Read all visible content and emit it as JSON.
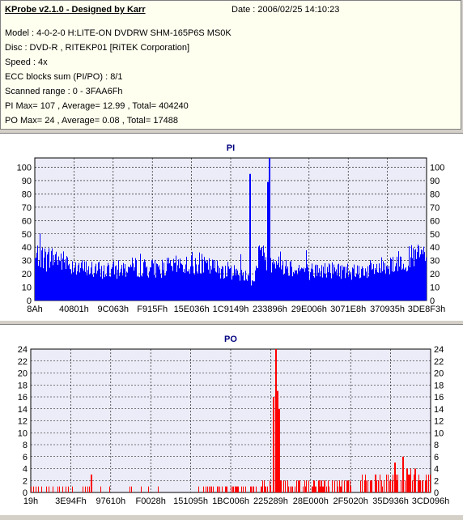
{
  "header": {
    "title": "KProbe v2.1.0 - Designed by Karr",
    "date": "Date : 2006/02/25 14:10:23",
    "model": "Model : 4-0-2-0 H:LITE-ON DVDRW SHM-165P6S MS0K",
    "disc": "Disc : DVD-R , RITEKP01 [RiTEK Corporation]",
    "speed": "Speed : 4x",
    "ecc": "ECC blocks sum (PI/PO) : 8/1",
    "scanned": "Scanned range : 0 - 3FAA6Fh",
    "pi_stats": "PI Max= 107 , Average= 12.99 , Total= 404240",
    "po_stats": "PO Max= 24 , Average= 0.08 , Total= 17488"
  },
  "colors": {
    "background": "#d4d0c8",
    "info_bg": "#fffff0",
    "plot_bg": "#ececf8",
    "bar": "#0000ff",
    "po_bar": "#ff0000",
    "title": "#000080"
  },
  "chart_data": [
    {
      "type": "bar",
      "title": "PI",
      "ylim": [
        0,
        107
      ],
      "yticks": [
        0,
        10,
        20,
        30,
        40,
        50,
        60,
        70,
        80,
        90,
        100
      ],
      "xlabels": [
        "8Ah",
        "40801h",
        "9C063h",
        "F915Fh",
        "15E036h",
        "1C9149h",
        "233896h",
        "29E006h",
        "3071E8h",
        "370935h",
        "3DE8F3h"
      ],
      "baseline_profile": [
        [
          0.0,
          30
        ],
        [
          0.01,
          36
        ],
        [
          0.03,
          30
        ],
        [
          0.05,
          33
        ],
        [
          0.08,
          28
        ],
        [
          0.12,
          24
        ],
        [
          0.18,
          22
        ],
        [
          0.25,
          25
        ],
        [
          0.32,
          24
        ],
        [
          0.38,
          27
        ],
        [
          0.45,
          25
        ],
        [
          0.5,
          22
        ],
        [
          0.53,
          20
        ],
        [
          0.55,
          16
        ],
        [
          0.56,
          16
        ],
        [
          0.57,
          35
        ],
        [
          0.6,
          30
        ],
        [
          0.62,
          30
        ],
        [
          0.64,
          26
        ],
        [
          0.7,
          22
        ],
        [
          0.76,
          23
        ],
        [
          0.82,
          22
        ],
        [
          0.87,
          24
        ],
        [
          0.9,
          27
        ],
        [
          0.94,
          30
        ],
        [
          0.97,
          33
        ],
        [
          1.0,
          35
        ]
      ],
      "peaks": [
        {
          "pos": 0.548,
          "value": 95
        },
        {
          "pos": 0.598,
          "value": 107
        },
        {
          "pos": 0.594,
          "value": 89
        }
      ],
      "max": 107,
      "average": 12.99,
      "total": 404240
    },
    {
      "type": "bar",
      "title": "PO",
      "ylim": [
        0,
        24
      ],
      "yticks": [
        0,
        2,
        4,
        6,
        8,
        10,
        12,
        14,
        16,
        18,
        20,
        22,
        24
      ],
      "xlabels": [
        "19h",
        "3E94Fh",
        "97610h",
        "F0028h",
        "151095h",
        "1BC006h",
        "225289h",
        "28E000h",
        "2F5020h",
        "35D936h",
        "3CD096h"
      ],
      "baseline_profile": [
        [
          0.0,
          0.5
        ],
        [
          0.2,
          0.4
        ],
        [
          0.4,
          0.3
        ],
        [
          0.5,
          0.6
        ],
        [
          0.58,
          1.5
        ],
        [
          0.62,
          1.5
        ],
        [
          0.7,
          1.2
        ],
        [
          0.8,
          1.5
        ],
        [
          0.88,
          2
        ],
        [
          0.94,
          2.5
        ],
        [
          1.0,
          2
        ]
      ],
      "peaks": [
        {
          "pos": 0.6125,
          "value": 24
        },
        {
          "pos": 0.617,
          "value": 17
        },
        {
          "pos": 0.62,
          "value": 14
        },
        {
          "pos": 0.606,
          "value": 16
        },
        {
          "pos": 0.15,
          "value": 3
        },
        {
          "pos": 0.93,
          "value": 6
        },
        {
          "pos": 0.91,
          "value": 5
        },
        {
          "pos": 0.96,
          "value": 4
        }
      ],
      "max": 24,
      "average": 0.08,
      "total": 17488
    }
  ]
}
